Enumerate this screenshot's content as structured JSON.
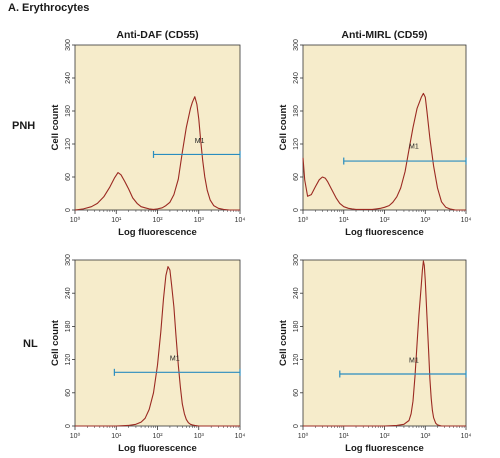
{
  "figure_title": "A. Erythrocytes",
  "rows": [
    {
      "label": "PNH"
    },
    {
      "label": "NL"
    }
  ],
  "colors": {
    "panel_background": "#f6eccb",
    "histogram_line": "#9b2a22",
    "marker_line": "#2a8dbf",
    "axis": "#333333"
  },
  "chart_data": [
    {
      "type": "line",
      "row": "PNH",
      "title": "Anti-DAF (CD55)",
      "xlabel": "Log fluorescence",
      "ylabel": "Cell count",
      "x_scale": "log",
      "xlim": [
        1,
        10000
      ],
      "ylim": [
        0,
        300
      ],
      "x_ticks": [
        1,
        10,
        100,
        1000,
        10000
      ],
      "x_tick_labels": [
        "10⁰",
        "10¹",
        "10²",
        "10³",
        "10⁴"
      ],
      "y_ticks": [
        0,
        60,
        120,
        180,
        240,
        300
      ],
      "grid": false,
      "series": [
        {
          "x": [
            1,
            1.6,
            2.5,
            3.5,
            5,
            7,
            9,
            11,
            13,
            16,
            20,
            25,
            32,
            40,
            50,
            63,
            80,
            100,
            130,
            160,
            200,
            250,
            320,
            400,
            500,
            630,
            700,
            800,
            900,
            1000,
            1100,
            1250,
            1400,
            1600,
            1900,
            2300,
            3000,
            4000,
            5500,
            7000,
            10000
          ],
          "y": [
            0,
            2,
            6,
            12,
            24,
            42,
            58,
            68,
            64,
            52,
            38,
            22,
            12,
            6,
            4,
            2,
            1,
            2,
            4,
            8,
            14,
            28,
            56,
            105,
            150,
            185,
            196,
            206,
            192,
            165,
            130,
            90,
            60,
            36,
            18,
            8,
            3,
            1,
            0,
            0,
            0
          ]
        }
      ],
      "marker": {
        "label": "M1",
        "x_range": [
          80,
          10000
        ],
        "y": 101,
        "label_x": 800,
        "label_y": 122
      }
    },
    {
      "type": "line",
      "row": "PNH",
      "title": "Anti-MIRL (CD59)",
      "xlabel": "Log fluorescence",
      "ylabel": "Cell count",
      "x_scale": "log",
      "xlim": [
        1,
        10000
      ],
      "ylim": [
        0,
        300
      ],
      "x_ticks": [
        1,
        10,
        100,
        1000,
        10000
      ],
      "x_tick_labels": [
        "10⁰",
        "10¹",
        "10²",
        "10³",
        "10⁴"
      ],
      "y_ticks": [
        0,
        60,
        120,
        180,
        240,
        300
      ],
      "grid": false,
      "series": [
        {
          "x": [
            1,
            1.1,
            1.3,
            1.6,
            2,
            2.5,
            3,
            3.5,
            4,
            5,
            6.5,
            8,
            10,
            13,
            16,
            20,
            25,
            32,
            40,
            50,
            63,
            80,
            100,
            130,
            160,
            200,
            250,
            320,
            400,
            500,
            630,
            800,
            900,
            1000,
            1100,
            1300,
            1600,
            2000,
            2500,
            3200,
            4000,
            5500,
            7000,
            10000
          ],
          "y": [
            95,
            55,
            25,
            28,
            42,
            55,
            60,
            58,
            52,
            38,
            22,
            12,
            6,
            3,
            2,
            1,
            1,
            1,
            1,
            1,
            2,
            3,
            5,
            8,
            14,
            24,
            40,
            70,
            110,
            150,
            185,
            205,
            212,
            205,
            180,
            130,
            80,
            40,
            15,
            5,
            2,
            0,
            0,
            0
          ]
        }
      ],
      "marker": {
        "label": "M1",
        "x_range": [
          10,
          10000
        ],
        "y": 89,
        "label_x": 400,
        "label_y": 112
      }
    },
    {
      "type": "line",
      "row": "NL",
      "title": "",
      "xlabel": "Log fluorescence",
      "ylabel": "Cell count",
      "x_scale": "log",
      "xlim": [
        1,
        10000
      ],
      "ylim": [
        0,
        300
      ],
      "x_ticks": [
        1,
        10,
        100,
        1000,
        10000
      ],
      "x_tick_labels": [
        "10⁰",
        "10¹",
        "10²",
        "10³",
        "10⁴"
      ],
      "y_ticks": [
        0,
        60,
        120,
        180,
        240,
        300
      ],
      "grid": false,
      "series": [
        {
          "x": [
            1,
            10,
            20,
            30,
            40,
            50,
            63,
            80,
            100,
            120,
            140,
            160,
            180,
            200,
            220,
            250,
            280,
            320,
            360,
            400,
            450,
            500,
            560,
            630,
            700,
            800,
            1000,
            1300,
            1600,
            2000,
            10000
          ],
          "y": [
            0,
            0,
            1,
            3,
            7,
            14,
            30,
            60,
            110,
            170,
            230,
            272,
            288,
            282,
            255,
            215,
            165,
            110,
            70,
            40,
            22,
            12,
            6,
            3,
            2,
            1,
            0,
            0,
            0,
            0,
            0
          ]
        }
      ],
      "marker": {
        "label": "M1",
        "x_range": [
          9,
          10000
        ],
        "y": 97,
        "label_x": 200,
        "label_y": 118
      }
    },
    {
      "type": "line",
      "row": "NL",
      "title": "",
      "xlabel": "Log fluorescence",
      "ylabel": "Cell count",
      "x_scale": "log",
      "xlim": [
        1,
        10000
      ],
      "ylim": [
        0,
        300
      ],
      "x_ticks": [
        1,
        10,
        100,
        1000,
        10000
      ],
      "x_tick_labels": [
        "10⁰",
        "10¹",
        "10²",
        "10³",
        "10⁴"
      ],
      "y_ticks": [
        0,
        60,
        120,
        180,
        240,
        300
      ],
      "grid": false,
      "series": [
        {
          "x": [
            1,
            100,
            200,
            300,
            400,
            450,
            500,
            560,
            630,
            700,
            800,
            850,
            900,
            950,
            1000,
            1100,
            1200,
            1300,
            1400,
            1500,
            1600,
            1800,
            2000,
            2500,
            10000
          ],
          "y": [
            0,
            0,
            1,
            3,
            10,
            22,
            45,
            90,
            150,
            200,
            255,
            282,
            298,
            290,
            262,
            200,
            140,
            85,
            50,
            28,
            15,
            5,
            2,
            0,
            0
          ]
        }
      ],
      "marker": {
        "label": "M1",
        "x_range": [
          8,
          10000
        ],
        "y": 94,
        "label_x": 400,
        "label_y": 115
      }
    }
  ]
}
